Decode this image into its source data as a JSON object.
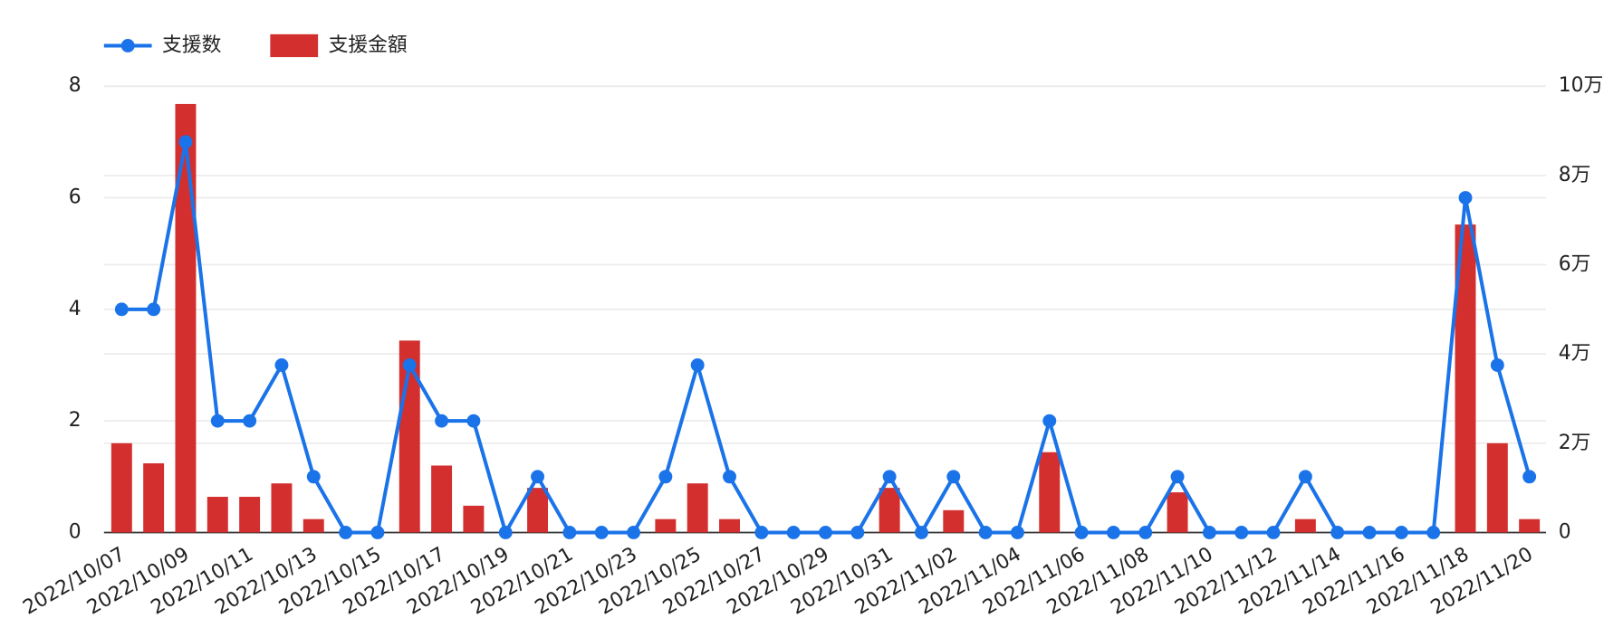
{
  "chart_data": {
    "type": "combo",
    "categories": [
      "2022/10/07",
      null,
      "2022/10/09",
      null,
      "2022/10/11",
      null,
      "2022/10/13",
      null,
      "2022/10/15",
      null,
      "2022/10/17",
      null,
      "2022/10/19",
      null,
      "2022/10/21",
      null,
      "2022/10/23",
      null,
      "2022/10/25",
      null,
      "2022/10/27",
      null,
      "2022/10/29",
      null,
      "2022/10/31",
      null,
      "2022/11/02",
      null,
      "2022/11/04",
      null,
      "2022/11/06",
      null,
      "2022/11/08",
      null,
      "2022/11/10",
      null,
      "2022/11/12",
      null,
      "2022/11/14",
      null,
      "2022/11/16",
      null,
      "2022/11/18",
      null,
      "2022/11/20"
    ],
    "series": [
      {
        "name": "支援数",
        "type": "line",
        "color": "#1a73e8",
        "axis": "y",
        "values": [
          4,
          4,
          7,
          2,
          2,
          3,
          1,
          0,
          0,
          3,
          2,
          2,
          0,
          1,
          0,
          0,
          0,
          1,
          3,
          1,
          0,
          0,
          0,
          0,
          1,
          0,
          1,
          0,
          0,
          2,
          0,
          0,
          0,
          1,
          0,
          0,
          0,
          1,
          0,
          0,
          0,
          0,
          6,
          3,
          1
        ]
      },
      {
        "name": "支援金額",
        "type": "bar",
        "color": "#d32f2f",
        "axis": "y2",
        "values": [
          20000,
          15500,
          96000,
          8000,
          8000,
          11000,
          3000,
          0,
          0,
          43000,
          15000,
          6000,
          0,
          10000,
          0,
          0,
          0,
          3000,
          11000,
          3000,
          0,
          0,
          0,
          0,
          10000,
          0,
          5000,
          0,
          0,
          18000,
          0,
          0,
          0,
          9000,
          0,
          0,
          0,
          3000,
          0,
          0,
          0,
          0,
          69000,
          20000,
          3000
        ]
      }
    ],
    "ylim": [
      0,
      8
    ],
    "yticks": [
      0,
      2,
      4,
      6,
      8
    ],
    "y2lim": [
      0,
      100000
    ],
    "y2ticks": [
      0,
      {
        "value": 20000,
        "label": "2万"
      },
      {
        "value": 40000,
        "label": "4万"
      },
      {
        "value": 60000,
        "label": "6万"
      },
      {
        "value": 80000,
        "label": "8万"
      },
      {
        "value": 100000,
        "label": "10万"
      }
    ],
    "grid": true,
    "legend": "top-left"
  }
}
